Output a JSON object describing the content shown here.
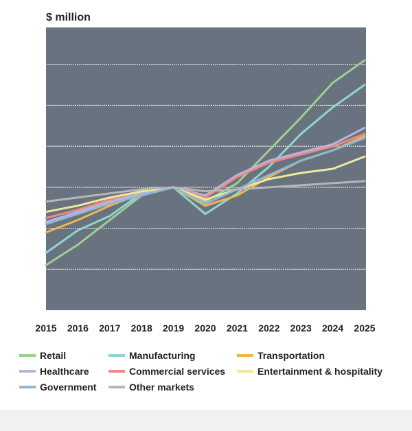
{
  "chart_data": {
    "type": "line",
    "ylabel": "$ million",
    "x": [
      "2015",
      "2016",
      "2017",
      "2018",
      "2019",
      "2020",
      "2021",
      "2022",
      "2023",
      "2024",
      "2025"
    ],
    "y_axis_labels_shown": false,
    "grid": true,
    "plot_background": "#69737f",
    "series": [
      {
        "name": "Retail",
        "color": "#9fce93",
        "values": [
          6.2,
          7.2,
          8.4,
          9.6,
          10.0,
          9.3,
          10.2,
          11.8,
          13.4,
          15.1,
          16.2
        ]
      },
      {
        "name": "Manufacturing",
        "color": "#8fd6d2",
        "values": [
          6.8,
          7.9,
          8.6,
          9.7,
          10.0,
          8.7,
          9.7,
          11.0,
          12.6,
          13.9,
          15.0
        ]
      },
      {
        "name": "Transportation",
        "color": "#f5b44c",
        "values": [
          7.8,
          8.4,
          9.1,
          9.7,
          10.0,
          9.1,
          9.6,
          10.5,
          11.3,
          11.8,
          12.5
        ]
      },
      {
        "name": "Healthcare",
        "color": "#b9b5e0",
        "values": [
          8.3,
          8.8,
          9.3,
          9.7,
          10.0,
          9.6,
          10.6,
          11.3,
          11.7,
          12.1,
          12.9
        ]
      },
      {
        "name": "Commercial services",
        "color": "#f08a80",
        "values": [
          8.5,
          8.9,
          9.4,
          9.8,
          10.0,
          9.5,
          10.5,
          11.2,
          11.6,
          12.0,
          12.6
        ]
      },
      {
        "name": "Entertainment & hospitality",
        "color": "#eeea9c",
        "values": [
          8.8,
          9.1,
          9.5,
          9.8,
          10.0,
          9.4,
          9.9,
          10.4,
          10.7,
          10.9,
          11.5
        ]
      },
      {
        "name": "Government",
        "color": "#8fb7d6",
        "values": [
          8.2,
          8.7,
          9.2,
          9.6,
          10.0,
          9.2,
          9.9,
          10.6,
          11.3,
          11.8,
          12.4
        ]
      },
      {
        "name": "Other markets",
        "color": "#b6b6b6",
        "values": [
          9.3,
          9.5,
          9.7,
          9.9,
          10.0,
          9.8,
          9.9,
          10.0,
          10.1,
          10.2,
          10.3
        ]
      }
    ],
    "ylim": [
      4.0,
      17.8
    ],
    "legend_position": "bottom"
  }
}
